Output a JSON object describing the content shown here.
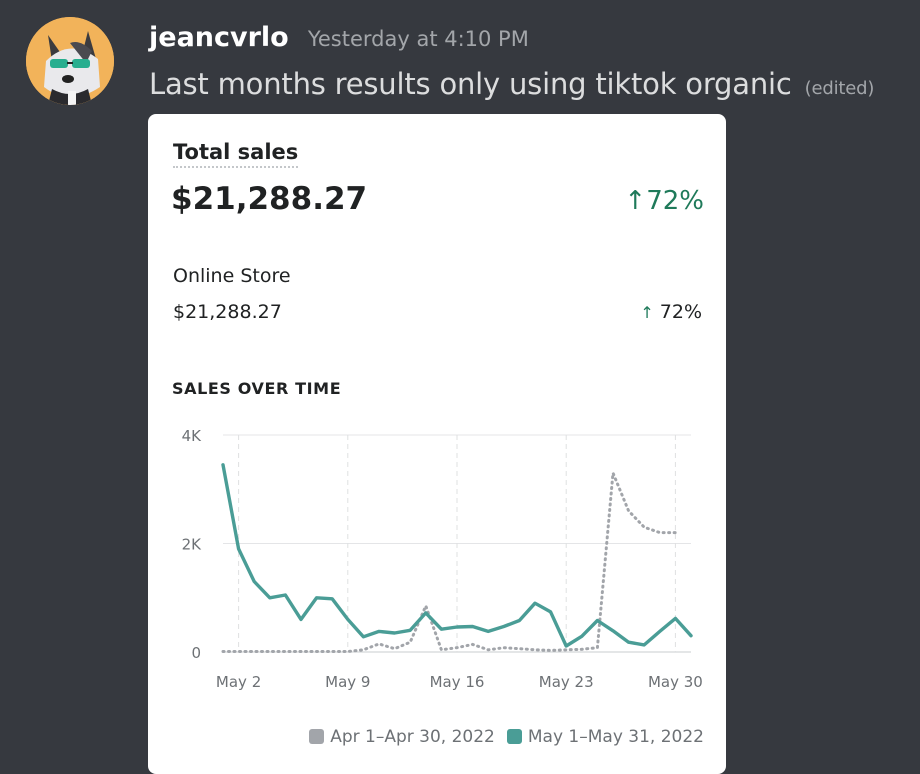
{
  "message": {
    "username": "jeancvrlo",
    "timestamp": "Yesterday at 4:10 PM",
    "text": "Last months results only using tiktok organic",
    "edited": "(edited)"
  },
  "card": {
    "title": "Total sales",
    "total_value": "$21,288.27",
    "total_change": "72%",
    "store_label": "Online Store",
    "store_value": "$21,288.27",
    "store_change": "72%",
    "section_title": "SALES OVER TIME"
  },
  "colors": {
    "current_series": "#4a9d96",
    "previous_series": "#a2a5aa",
    "positive": "#1f7a5a",
    "background": "#36393f"
  },
  "icons": {
    "up_arrow": "arrow-up-icon"
  },
  "chart_data": {
    "type": "line",
    "title": "SALES OVER TIME",
    "x_tick_labels": [
      "May 2",
      "May 9",
      "May 16",
      "May 23",
      "May 30"
    ],
    "x_tick_days": [
      2,
      9,
      16,
      23,
      30
    ],
    "y_tick_labels": [
      "4K",
      "2K",
      "0"
    ],
    "y_tick_values": [
      4000,
      2000,
      0
    ],
    "ylim": [
      0,
      4000
    ],
    "xlim": [
      1,
      31
    ],
    "grid": true,
    "legend_position": "bottom-right",
    "series": [
      {
        "name": "Apr 1–Apr 30, 2022",
        "style": "dotted",
        "color": "#a2a5aa",
        "x": [
          1,
          2,
          3,
          4,
          5,
          6,
          7,
          8,
          9,
          10,
          11,
          12,
          13,
          14,
          15,
          16,
          17,
          18,
          19,
          20,
          21,
          22,
          23,
          24,
          25,
          26,
          27,
          28,
          29,
          30
        ],
        "values": [
          10,
          10,
          10,
          10,
          10,
          10,
          10,
          10,
          10,
          40,
          150,
          60,
          180,
          850,
          40,
          80,
          140,
          40,
          80,
          60,
          40,
          30,
          40,
          50,
          80,
          3300,
          2600,
          2300,
          2200,
          2200
        ]
      },
      {
        "name": "May 1–May 31, 2022",
        "style": "solid",
        "color": "#4a9d96",
        "x": [
          1,
          2,
          3,
          4,
          5,
          6,
          7,
          8,
          9,
          10,
          11,
          12,
          13,
          14,
          15,
          16,
          17,
          18,
          19,
          20,
          21,
          22,
          23,
          24,
          25,
          26,
          27,
          28,
          29,
          30,
          31
        ],
        "values": [
          3450,
          1900,
          1300,
          1000,
          1050,
          600,
          1000,
          980,
          600,
          280,
          380,
          350,
          400,
          720,
          420,
          460,
          470,
          380,
          470,
          580,
          900,
          740,
          110,
          290,
          580,
          390,
          180,
          130,
          380,
          620,
          300
        ]
      }
    ]
  }
}
